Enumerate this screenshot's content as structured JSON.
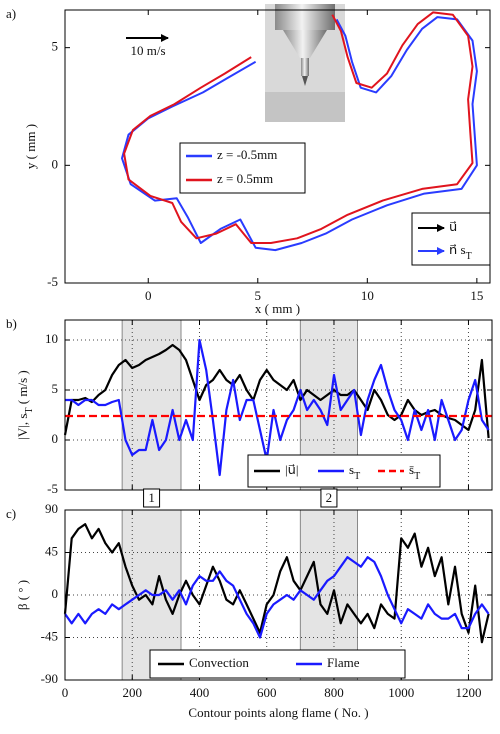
{
  "chart_data": [
    {
      "type": "line",
      "panel_label": "a)",
      "xlabel": "x ( mm )",
      "ylabel": "y ( mm )",
      "annotation": "10 m/s",
      "xlim": [
        -3.8,
        15.6
      ],
      "ylim": [
        -5,
        6.6
      ],
      "xticks": [
        0,
        5,
        10,
        15
      ],
      "yticks": [
        -5,
        0,
        5
      ],
      "grid": false,
      "series": [
        {
          "name": "z = -0.5mm",
          "color": "#2a3cff",
          "x": [
            4.9,
            3.6,
            2.5,
            1.1,
            0.0,
            -0.9,
            -1.2,
            -0.8,
            0.3,
            1.3,
            1.8,
            2.4,
            3.3,
            4.2,
            4.9,
            5.8,
            7.0,
            8.1,
            9.3,
            10.9,
            12.6,
            14.3,
            15.0,
            14.9,
            14.8,
            15.0,
            14.8,
            14.1,
            13.2,
            12.5,
            11.8,
            11.1,
            10.4,
            9.7,
            9.3,
            9.0,
            8.6
          ],
          "values": [
            4.4,
            3.7,
            3.1,
            2.5,
            2.0,
            1.3,
            0.3,
            -0.8,
            -1.5,
            -1.4,
            -2.2,
            -3.3,
            -2.7,
            -2.3,
            -3.5,
            -3.6,
            -3.3,
            -2.9,
            -2.3,
            -1.7,
            -1.2,
            -1.0,
            0.0,
            1.3,
            2.6,
            4.0,
            5.3,
            6.2,
            6.3,
            5.8,
            4.9,
            3.8,
            3.1,
            3.3,
            4.4,
            5.5,
            6.2
          ]
        },
        {
          "name": "z = 0.5mm",
          "color": "#e0141e",
          "x": [
            4.7,
            3.5,
            2.4,
            1.2,
            0.1,
            -0.7,
            -1.1,
            -0.9,
            0.1,
            1.1,
            1.5,
            2.2,
            3.1,
            4.0,
            4.7,
            5.6,
            6.8,
            7.9,
            9.1,
            10.7,
            12.5,
            14.1,
            14.8,
            14.7,
            14.6,
            14.8,
            14.6,
            13.9,
            13.0,
            12.3,
            11.6,
            10.9,
            10.2,
            9.5,
            9.1,
            8.8,
            8.4
          ],
          "values": [
            4.6,
            3.9,
            3.3,
            2.6,
            2.1,
            1.5,
            0.5,
            -0.6,
            -1.3,
            -1.6,
            -2.4,
            -3.1,
            -2.9,
            -2.5,
            -3.3,
            -3.3,
            -3.1,
            -2.7,
            -2.1,
            -1.5,
            -1.0,
            -0.8,
            0.1,
            1.4,
            2.8,
            4.2,
            5.5,
            6.4,
            6.5,
            6.0,
            5.1,
            3.9,
            3.3,
            3.5,
            4.6,
            5.7,
            6.4
          ]
        }
      ],
      "arrow_legend": [
        {
          "name": "u⃗",
          "color": "#000000"
        },
        {
          "name": "n⃗ s",
          "name_sub": "T",
          "color": "#2a3cff"
        }
      ]
    },
    {
      "type": "line",
      "panel_label": "b)",
      "ylabel": {
        "text": "|V|, s",
        "sub": "T",
        "unit": " ( m/s )"
      },
      "xlim": [
        0,
        1270
      ],
      "ylim": [
        -5,
        12
      ],
      "yticks": [
        -5,
        0,
        5,
        10
      ],
      "grid": true,
      "x": [
        0,
        20,
        40,
        60,
        80,
        100,
        120,
        140,
        160,
        180,
        200,
        220,
        240,
        260,
        280,
        300,
        320,
        340,
        360,
        380,
        400,
        420,
        440,
        460,
        480,
        500,
        520,
        540,
        560,
        580,
        600,
        620,
        640,
        660,
        680,
        700,
        720,
        740,
        760,
        780,
        800,
        820,
        840,
        860,
        880,
        900,
        920,
        940,
        960,
        980,
        1000,
        1020,
        1040,
        1060,
        1080,
        1100,
        1120,
        1140,
        1160,
        1180,
        1200,
        1220,
        1240,
        1260
      ],
      "series": [
        {
          "name": "|u⃗|",
          "color": "#000000",
          "values": [
            0.5,
            4,
            4,
            4.2,
            3.8,
            4.5,
            5,
            6.5,
            7.5,
            8,
            7.2,
            7.5,
            8,
            8.3,
            8.6,
            9,
            9.5,
            9,
            8,
            6,
            4,
            5.5,
            6,
            7,
            6,
            5.5,
            6.5,
            5,
            4,
            6,
            7,
            6,
            5.5,
            5,
            6,
            4,
            5,
            4.5,
            4,
            4.5,
            5,
            4.5,
            4.5,
            5,
            4,
            3,
            5,
            4,
            2.5,
            2,
            2.5,
            4,
            3,
            2.5,
            2.8,
            3,
            2.5,
            2.2,
            2,
            1.5,
            1,
            3,
            8,
            0.2
          ]
        },
        {
          "name": "s",
          "name_sub": "T",
          "color": "#1a1aff",
          "values": [
            4,
            4,
            3.5,
            4,
            4,
            3.5,
            3.5,
            3.8,
            4,
            0,
            -1.5,
            -1,
            -1,
            2,
            -1,
            0,
            3,
            0,
            2,
            0,
            10,
            7,
            2,
            -3.5,
            3,
            6,
            2,
            4,
            4,
            1,
            -2,
            3,
            0,
            2,
            3,
            5,
            3,
            4,
            3,
            1.5,
            6.5,
            3,
            4,
            5,
            0.5,
            4,
            6,
            7.5,
            5,
            3,
            2,
            0,
            3,
            1,
            3,
            0,
            4,
            2,
            0,
            1,
            4,
            6,
            2,
            1
          ]
        },
        {
          "name": "s̄",
          "name_sub": "T",
          "color": "#ff0000",
          "dashed": true,
          "x": [
            0,
            1270
          ],
          "values": [
            2.4,
            2.4
          ]
        }
      ]
    },
    {
      "type": "line",
      "panel_label": "c)",
      "xlabel": "Contour points along flame ( No. )",
      "ylabel": "β ( ° )",
      "xlim": [
        0,
        1270
      ],
      "ylim": [
        -90,
        90
      ],
      "xticks": [
        0,
        200,
        400,
        600,
        800,
        1000,
        1200
      ],
      "yticks": [
        -90,
        -45,
        0,
        45,
        90
      ],
      "grid": true,
      "regions": [
        {
          "range": [
            170,
            345
          ],
          "label": "1"
        },
        {
          "range": [
            700,
            870
          ],
          "label": "2"
        }
      ],
      "x": [
        0,
        20,
        40,
        60,
        80,
        100,
        120,
        140,
        160,
        180,
        200,
        220,
        240,
        260,
        280,
        300,
        320,
        340,
        360,
        380,
        400,
        420,
        440,
        460,
        480,
        500,
        520,
        540,
        560,
        580,
        600,
        620,
        640,
        660,
        680,
        700,
        720,
        740,
        760,
        780,
        800,
        820,
        840,
        860,
        880,
        900,
        920,
        940,
        960,
        980,
        1000,
        1020,
        1040,
        1060,
        1080,
        1100,
        1120,
        1140,
        1160,
        1180,
        1200,
        1220,
        1240,
        1260
      ],
      "series": [
        {
          "name": "Convection",
          "color": "#000000",
          "values": [
            -20,
            60,
            70,
            75,
            60,
            70,
            55,
            45,
            55,
            30,
            10,
            -5,
            0,
            -10,
            20,
            -5,
            -20,
            0,
            15,
            0,
            -10,
            10,
            30,
            15,
            -5,
            -10,
            5,
            -10,
            -25,
            -40,
            -10,
            0,
            25,
            40,
            15,
            5,
            20,
            35,
            -10,
            -20,
            5,
            -30,
            -10,
            -20,
            -30,
            -20,
            -35,
            -10,
            -20,
            -25,
            60,
            50,
            65,
            30,
            50,
            20,
            40,
            -10,
            30,
            -20,
            -40,
            10,
            -50,
            -20
          ]
        },
        {
          "name": "Flame",
          "color": "#1a1aff",
          "values": [
            -20,
            -30,
            -20,
            -30,
            -20,
            -15,
            -20,
            -10,
            -15,
            -10,
            -5,
            0,
            5,
            0,
            0,
            5,
            -5,
            5,
            -10,
            10,
            20,
            15,
            15,
            25,
            15,
            10,
            -5,
            -20,
            -30,
            -45,
            -20,
            -10,
            -5,
            0,
            -5,
            5,
            0,
            -5,
            5,
            15,
            20,
            30,
            40,
            35,
            30,
            40,
            35,
            20,
            0,
            -15,
            -30,
            -15,
            -20,
            -25,
            -10,
            -20,
            -25,
            -25,
            -20,
            -35,
            -35,
            -20,
            -10,
            -20
          ]
        }
      ]
    }
  ]
}
